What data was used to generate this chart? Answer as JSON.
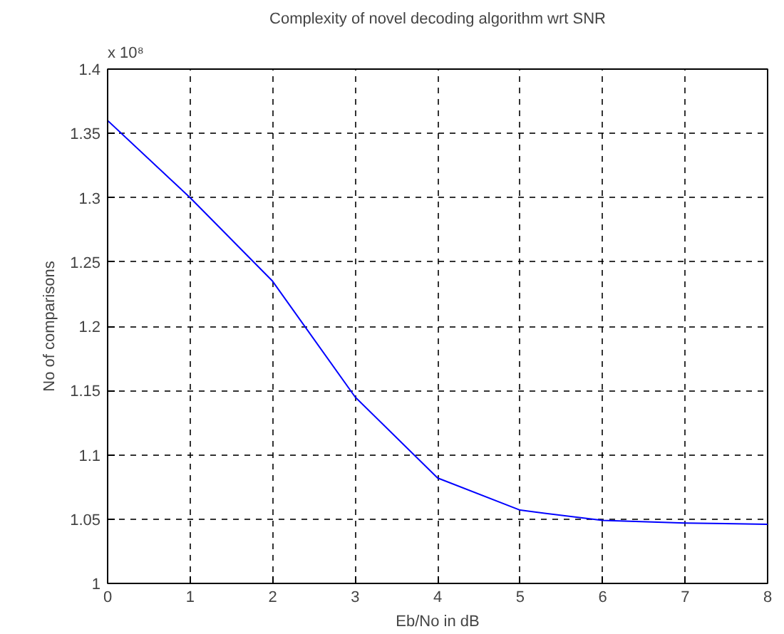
{
  "chart_data": {
    "type": "line",
    "title": "Complexity of novel decoding algorithm wrt SNR",
    "xlabel": "Eb/No in dB",
    "ylabel": "No of comparisons",
    "annotations": [
      "x 10⁸"
    ],
    "x": [
      0,
      1,
      2,
      3,
      4,
      5,
      6,
      7,
      8
    ],
    "series": [
      {
        "color": "#0000ff",
        "values": [
          1.36,
          1.3,
          1.235,
          1.145,
          1.082,
          1.057,
          1.049,
          1.047,
          1.046
        ]
      }
    ],
    "xlim": [
      0,
      8
    ],
    "xticks": [
      0,
      1,
      2,
      3,
      4,
      5,
      6,
      7,
      8
    ],
    "ylim": [
      1,
      1.4
    ],
    "yticks": [
      1,
      1.05,
      1.1,
      1.15,
      1.2,
      1.25,
      1.3,
      1.35,
      1.4
    ],
    "grid": true,
    "marker": "none",
    "line_style": "solid"
  }
}
